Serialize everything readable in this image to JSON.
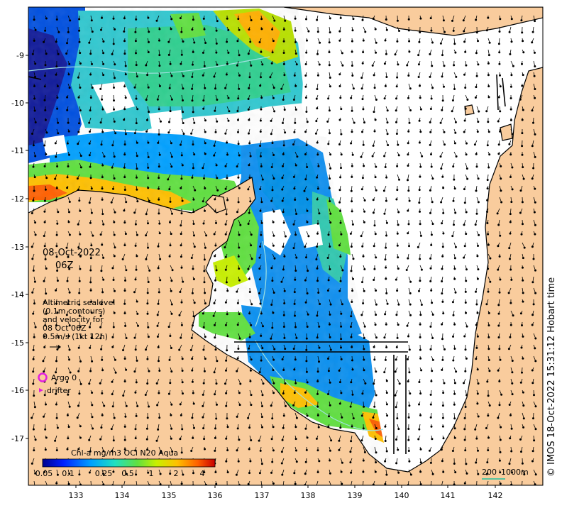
{
  "date_label": "08-Oct-2022",
  "time_label": "06Z",
  "legend": {
    "line1": "Altimetric sealevel",
    "line2": "(0.1m contours)",
    "line3": "and velocity for",
    "line4": "08 Oct 06Z",
    "line5": "0.5m/s (1kt 12h)"
  },
  "argo_label": "Argo 0",
  "drifter_label": "drifter",
  "colorbar": {
    "title": "Chl-a mg/m3 OCi N20 Aqua",
    "ticks": [
      "0.05",
      "0.1",
      "0.25",
      "0.5",
      "1",
      "2",
      "4"
    ]
  },
  "scale_bar": {
    "label_left": "200",
    "label_right": "1000m"
  },
  "credit": "© IMOS 18-Oct-2022 15:31:12 Hobart time",
  "x_axis_ticks": [
    "133",
    "134",
    "135",
    "136",
    "137",
    "138",
    "139",
    "140",
    "141",
    "142"
  ],
  "y_axis_ticks": [
    "-9",
    "-10",
    "-11",
    "-12",
    "-13",
    "-14",
    "-15",
    "-16",
    "-17"
  ],
  "colors": {
    "land": "#f9cc9d",
    "sea": "#ffffff",
    "argo": "#e01fe0",
    "drifter": "#e01fe0",
    "contour": "#9fe0e0",
    "colormap": [
      "#00008f",
      "#0020ff",
      "#00a0ff",
      "#20e0c0",
      "#60e040",
      "#c8f000",
      "#ffc000",
      "#ff6000",
      "#c80000"
    ]
  }
}
